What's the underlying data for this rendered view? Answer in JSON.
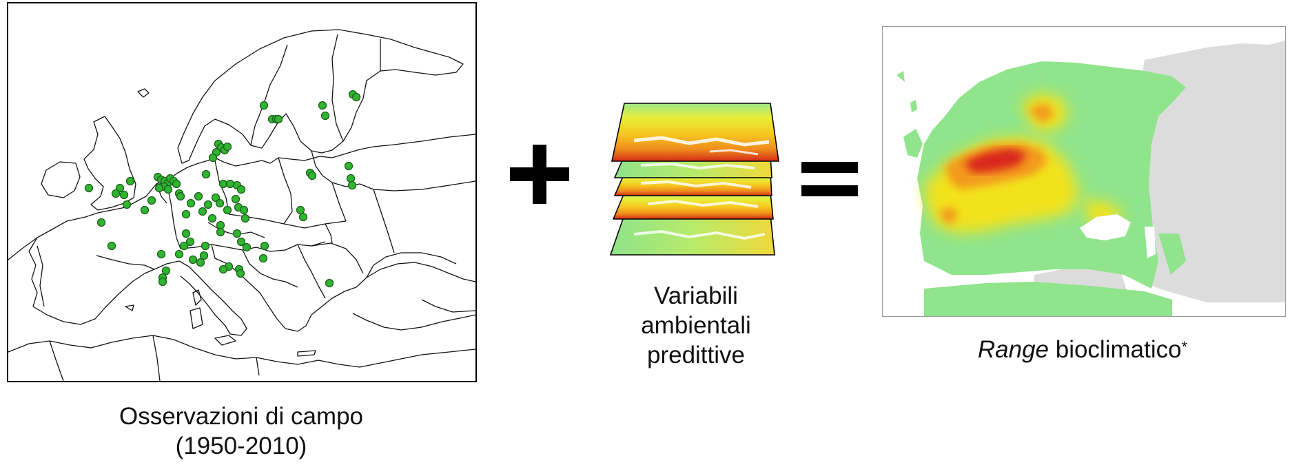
{
  "observations": {
    "caption_line1": "Osservazioni di campo",
    "caption_line2": "(1950-2010)",
    "point_color": "#2fb52f",
    "point_stroke": "#1f5e1f"
  },
  "operators": {
    "plus": "+",
    "equals": "="
  },
  "predictors": {
    "caption_line1": "Variabili",
    "caption_line2": "ambientali",
    "caption_line3": "predittive",
    "layer_count": 5
  },
  "range_map": {
    "caption_emphasis": "Range",
    "caption_text": " bioclimatico",
    "caption_marker": "*",
    "colors": {
      "absent": "#dcdcdc",
      "low": "#90e48c",
      "medium": "#f2e21c",
      "high": "#f39a1c",
      "very_high": "#d9251a"
    }
  }
}
